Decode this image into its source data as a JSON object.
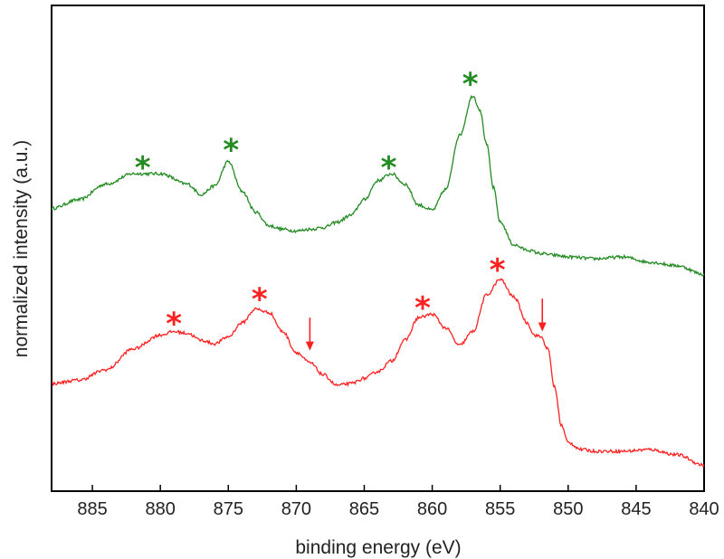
{
  "chart_data": {
    "type": "line",
    "xlabel": "binding energy (eV)",
    "ylabel": "normalized intensity (a.u.)",
    "xlim": [
      888,
      840
    ],
    "x_reversed": true,
    "y_ticks_shown": false,
    "xticks": [
      885,
      880,
      875,
      870,
      865,
      860,
      855,
      850,
      845,
      840
    ],
    "xtick_labels": [
      "885",
      "880",
      "875",
      "870",
      "865",
      "860",
      "855",
      "850",
      "845",
      "840"
    ],
    "grid": false,
    "series": [
      {
        "color": "#228B22",
        "x": [
          888,
          886,
          884,
          882,
          880,
          878,
          877,
          876,
          875,
          874,
          873,
          872,
          871,
          870,
          869,
          868,
          867,
          866,
          865,
          864,
          863,
          862,
          861,
          860,
          859,
          858,
          857,
          856.5,
          856,
          855.5,
          855,
          854,
          853,
          852,
          851,
          850,
          848,
          846,
          844,
          842,
          840
        ],
        "y": [
          1.63,
          1.68,
          1.77,
          1.83,
          1.83,
          1.77,
          1.71,
          1.76,
          1.9,
          1.73,
          1.61,
          1.53,
          1.51,
          1.5,
          1.51,
          1.52,
          1.55,
          1.59,
          1.68,
          1.79,
          1.83,
          1.77,
          1.65,
          1.62,
          1.74,
          2.05,
          2.28,
          2.2,
          2.0,
          1.75,
          1.55,
          1.42,
          1.39,
          1.37,
          1.36,
          1.35,
          1.34,
          1.35,
          1.32,
          1.3,
          1.25
        ]
      },
      {
        "color": "#FF2020",
        "x": [
          888,
          886,
          884,
          882,
          880,
          879,
          878,
          877,
          876,
          875,
          874,
          873,
          872,
          871,
          870,
          869,
          868,
          867,
          866,
          865,
          864,
          863,
          862,
          861,
          860,
          859,
          858,
          857,
          856,
          855,
          854,
          853,
          852.5,
          852,
          851.5,
          851,
          850.5,
          850,
          849,
          848,
          846,
          844,
          842,
          840
        ],
        "y": [
          0.62,
          0.64,
          0.7,
          0.82,
          0.9,
          0.92,
          0.91,
          0.87,
          0.85,
          0.89,
          0.97,
          1.05,
          1.03,
          0.92,
          0.8,
          0.74,
          0.67,
          0.61,
          0.62,
          0.65,
          0.69,
          0.75,
          0.87,
          1.0,
          1.02,
          0.94,
          0.84,
          0.92,
          1.13,
          1.22,
          1.12,
          0.97,
          0.9,
          0.89,
          0.82,
          0.6,
          0.38,
          0.28,
          0.24,
          0.23,
          0.23,
          0.24,
          0.21,
          0.15
        ]
      }
    ],
    "annotations": [
      {
        "type": "asterisk",
        "x": 881.3,
        "y": 1.92,
        "color": "#228B22"
      },
      {
        "type": "asterisk",
        "x": 874.8,
        "y": 2.02,
        "color": "#228B22"
      },
      {
        "type": "asterisk",
        "x": 863.2,
        "y": 1.92,
        "color": "#228B22"
      },
      {
        "type": "asterisk",
        "x": 857.2,
        "y": 2.4,
        "color": "#228B22"
      },
      {
        "type": "asterisk",
        "x": 879.0,
        "y": 1.02,
        "color": "#FF2020"
      },
      {
        "type": "asterisk",
        "x": 872.7,
        "y": 1.16,
        "color": "#FF2020"
      },
      {
        "type": "asterisk",
        "x": 860.7,
        "y": 1.11,
        "color": "#FF2020"
      },
      {
        "type": "asterisk",
        "x": 855.2,
        "y": 1.33,
        "color": "#FF2020"
      },
      {
        "type": "arrow",
        "x": 869.0,
        "y_from": 1.0,
        "y_to": 0.81,
        "color": "#FF2020"
      },
      {
        "type": "arrow",
        "x": 851.9,
        "y_from": 1.11,
        "y_to": 0.92,
        "color": "#FF2020"
      }
    ]
  }
}
